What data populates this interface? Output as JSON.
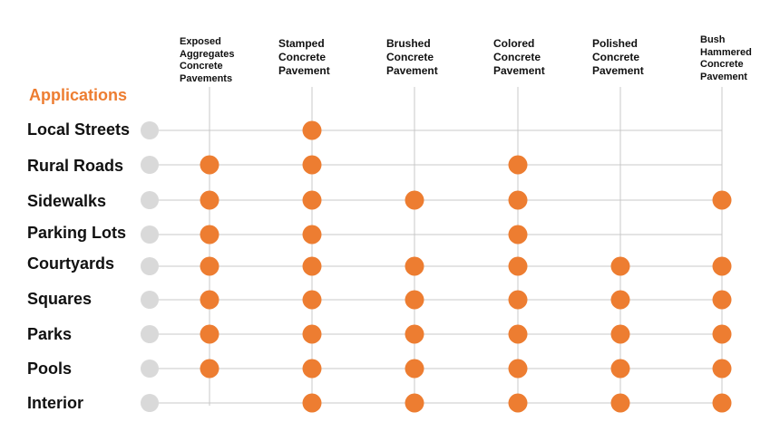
{
  "title": "Applications",
  "colors": {
    "accent": "#ed7d31",
    "row_marker": "#d9d9d9",
    "grid_line": "#c8c8c8",
    "text": "#111111"
  },
  "columns": [
    "Exposed\nAggregates\nConcrete\nPavements",
    "Stamped\nConcrete\nPavement",
    "Brushed\nConcrete\nPavement",
    "Colored\nConcrete\nPavement",
    "Polished\nConcrete\nPavement",
    "Bush\nHammered\nConcrete\nPavement"
  ],
  "rows": [
    {
      "label": "Local Streets",
      "marks": [
        false,
        true,
        false,
        false,
        false,
        false
      ]
    },
    {
      "label": "Rural Roads",
      "marks": [
        true,
        true,
        false,
        true,
        false,
        false
      ]
    },
    {
      "label": "Sidewalks",
      "marks": [
        true,
        true,
        true,
        true,
        false,
        true
      ]
    },
    {
      "label": "Parking Lots",
      "marks": [
        true,
        true,
        false,
        true,
        false,
        false
      ]
    },
    {
      "label": "Courtyards",
      "marks": [
        true,
        true,
        true,
        true,
        true,
        true
      ]
    },
    {
      "label": "Squares",
      "marks": [
        true,
        true,
        true,
        true,
        true,
        true
      ]
    },
    {
      "label": "Parks",
      "marks": [
        true,
        true,
        true,
        true,
        true,
        true
      ]
    },
    {
      "label": "Pools",
      "marks": [
        true,
        true,
        true,
        true,
        true,
        true
      ]
    },
    {
      "label": "Interior",
      "marks": [
        false,
        true,
        true,
        true,
        true,
        true
      ]
    }
  ]
}
